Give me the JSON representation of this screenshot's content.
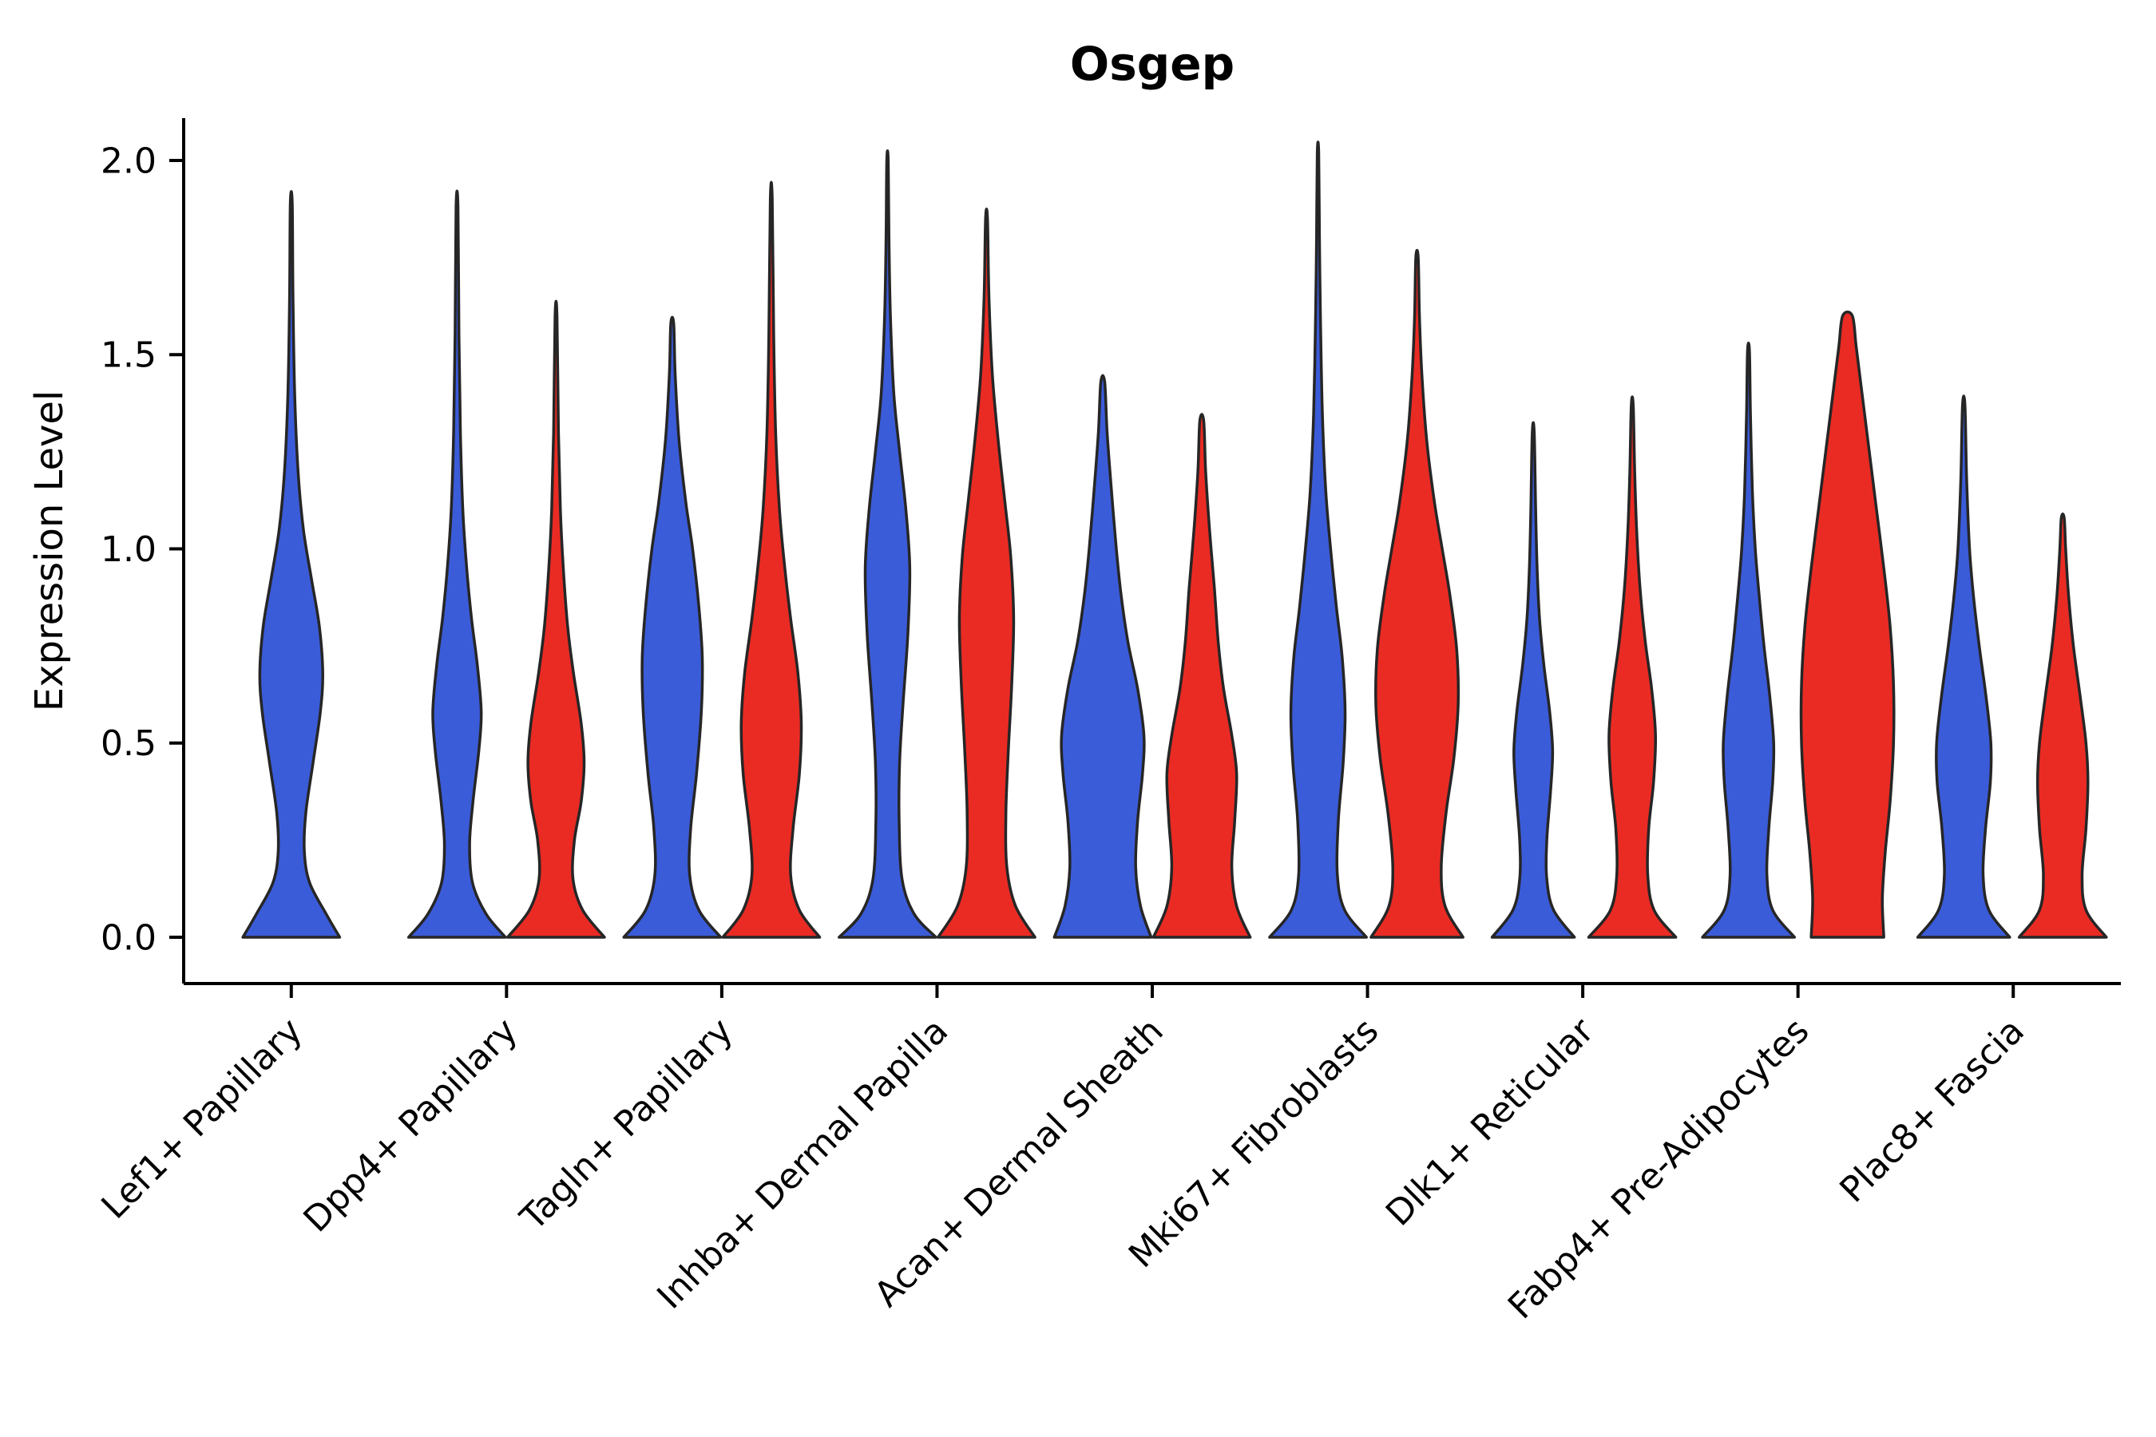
{
  "title": "Osgep",
  "chart_data": {
    "type": "violin",
    "title": "Osgep",
    "ylabel": "Expression Level",
    "xlabel": "",
    "ylim": [
      0,
      2.1
    ],
    "yticks": [
      {
        "value": 0.0,
        "label": "0.0"
      },
      {
        "value": 0.5,
        "label": "0.5"
      },
      {
        "value": 1.0,
        "label": "1.0"
      },
      {
        "value": 1.5,
        "label": "1.5"
      },
      {
        "value": 2.0,
        "label": "2.0"
      }
    ],
    "grid": false,
    "legend": "none",
    "groups": [
      "blue",
      "red"
    ],
    "colors": {
      "blue": "#3B5CD9",
      "red": "#EA2B24",
      "edge": "#262626",
      "text": "#000000",
      "axis": "#000000",
      "background": "#ffffff"
    },
    "categories": [
      "Lef1+ Papillary",
      "Dpp4+ Papillary",
      "Tagln+ Papillary",
      "Inhba+ Dermal Papilla",
      "Acan+ Dermal Sheath",
      "Mki67+ Fibroblasts",
      "Dlk1+ Reticular",
      "Fabp4+ Pre-Adipocytes",
      "Plac8+ Fascia"
    ],
    "violins": [
      {
        "category": "Lef1+ Papillary",
        "group": "blue",
        "solo": true,
        "max": 1.89,
        "profile": [
          [
            0,
            1.0
          ],
          [
            0.06,
            0.72
          ],
          [
            0.14,
            0.38
          ],
          [
            0.22,
            0.27
          ],
          [
            0.32,
            0.3
          ],
          [
            0.45,
            0.45
          ],
          [
            0.58,
            0.6
          ],
          [
            0.68,
            0.65
          ],
          [
            0.8,
            0.58
          ],
          [
            0.92,
            0.42
          ],
          [
            1.05,
            0.25
          ],
          [
            1.2,
            0.14
          ],
          [
            1.4,
            0.07
          ],
          [
            1.65,
            0.035
          ],
          [
            1.89,
            0.02
          ]
        ]
      },
      {
        "category": "Dpp4+ Papillary",
        "group": "blue",
        "solo": false,
        "max": 1.88,
        "profile": [
          [
            0,
            1.0
          ],
          [
            0.06,
            0.6
          ],
          [
            0.14,
            0.32
          ],
          [
            0.24,
            0.26
          ],
          [
            0.35,
            0.33
          ],
          [
            0.48,
            0.45
          ],
          [
            0.58,
            0.5
          ],
          [
            0.7,
            0.42
          ],
          [
            0.82,
            0.3
          ],
          [
            0.95,
            0.2
          ],
          [
            1.1,
            0.12
          ],
          [
            1.3,
            0.07
          ],
          [
            1.55,
            0.04
          ],
          [
            1.88,
            0.02
          ]
        ]
      },
      {
        "category": "Dpp4+ Papillary",
        "group": "red",
        "solo": false,
        "max": 1.6,
        "profile": [
          [
            0,
            1.0
          ],
          [
            0.07,
            0.55
          ],
          [
            0.15,
            0.35
          ],
          [
            0.25,
            0.38
          ],
          [
            0.35,
            0.52
          ],
          [
            0.45,
            0.58
          ],
          [
            0.55,
            0.52
          ],
          [
            0.68,
            0.36
          ],
          [
            0.8,
            0.24
          ],
          [
            0.95,
            0.15
          ],
          [
            1.1,
            0.09
          ],
          [
            1.3,
            0.05
          ],
          [
            1.6,
            0.02
          ]
        ]
      },
      {
        "category": "Tagln+ Papillary",
        "group": "blue",
        "solo": false,
        "max": 1.58,
        "profile": [
          [
            0,
            1.0
          ],
          [
            0.07,
            0.55
          ],
          [
            0.16,
            0.36
          ],
          [
            0.28,
            0.38
          ],
          [
            0.42,
            0.5
          ],
          [
            0.58,
            0.6
          ],
          [
            0.72,
            0.62
          ],
          [
            0.85,
            0.55
          ],
          [
            1.0,
            0.42
          ],
          [
            1.12,
            0.28
          ],
          [
            1.28,
            0.14
          ],
          [
            1.45,
            0.06
          ],
          [
            1.58,
            0.03
          ]
        ]
      },
      {
        "category": "Tagln+ Papillary",
        "group": "red",
        "solo": false,
        "max": 1.9,
        "profile": [
          [
            0,
            1.0
          ],
          [
            0.07,
            0.58
          ],
          [
            0.16,
            0.4
          ],
          [
            0.28,
            0.45
          ],
          [
            0.42,
            0.58
          ],
          [
            0.55,
            0.62
          ],
          [
            0.68,
            0.55
          ],
          [
            0.82,
            0.4
          ],
          [
            0.95,
            0.28
          ],
          [
            1.1,
            0.17
          ],
          [
            1.3,
            0.09
          ],
          [
            1.55,
            0.05
          ],
          [
            1.9,
            0.02
          ]
        ]
      },
      {
        "category": "Inhba+ Dermal Papilla",
        "group": "blue",
        "solo": false,
        "max": 2.0,
        "profile": [
          [
            0,
            1.0
          ],
          [
            0.06,
            0.55
          ],
          [
            0.15,
            0.3
          ],
          [
            0.3,
            0.24
          ],
          [
            0.45,
            0.25
          ],
          [
            0.6,
            0.32
          ],
          [
            0.78,
            0.42
          ],
          [
            0.95,
            0.46
          ],
          [
            1.1,
            0.38
          ],
          [
            1.25,
            0.25
          ],
          [
            1.4,
            0.13
          ],
          [
            1.6,
            0.06
          ],
          [
            1.8,
            0.03
          ],
          [
            2.0,
            0.015
          ]
        ]
      },
      {
        "category": "Inhba+ Dermal Papilla",
        "group": "red",
        "solo": false,
        "max": 1.85,
        "profile": [
          [
            0,
            1.0
          ],
          [
            0.08,
            0.6
          ],
          [
            0.18,
            0.42
          ],
          [
            0.32,
            0.4
          ],
          [
            0.48,
            0.45
          ],
          [
            0.65,
            0.52
          ],
          [
            0.82,
            0.56
          ],
          [
            0.98,
            0.5
          ],
          [
            1.12,
            0.38
          ],
          [
            1.28,
            0.24
          ],
          [
            1.45,
            0.12
          ],
          [
            1.65,
            0.05
          ],
          [
            1.85,
            0.02
          ]
        ]
      },
      {
        "category": "Acan+ Dermal Sheath",
        "group": "blue",
        "solo": false,
        "max": 1.43,
        "profile": [
          [
            0,
            1.0
          ],
          [
            0.08,
            0.78
          ],
          [
            0.18,
            0.68
          ],
          [
            0.3,
            0.72
          ],
          [
            0.42,
            0.82
          ],
          [
            0.52,
            0.85
          ],
          [
            0.64,
            0.72
          ],
          [
            0.76,
            0.52
          ],
          [
            0.88,
            0.38
          ],
          [
            1.0,
            0.28
          ],
          [
            1.15,
            0.18
          ],
          [
            1.3,
            0.09
          ],
          [
            1.43,
            0.04
          ]
        ]
      },
      {
        "category": "Acan+ Dermal Sheath",
        "group": "red",
        "solo": false,
        "max": 1.33,
        "profile": [
          [
            0,
            1.0
          ],
          [
            0.08,
            0.72
          ],
          [
            0.18,
            0.62
          ],
          [
            0.3,
            0.68
          ],
          [
            0.42,
            0.72
          ],
          [
            0.52,
            0.62
          ],
          [
            0.64,
            0.45
          ],
          [
            0.76,
            0.34
          ],
          [
            0.9,
            0.26
          ],
          [
            1.05,
            0.16
          ],
          [
            1.2,
            0.08
          ],
          [
            1.33,
            0.04
          ]
        ]
      },
      {
        "category": "Mki67+ Fibroblasts",
        "group": "blue",
        "solo": false,
        "max": 2.02,
        "profile": [
          [
            0,
            1.0
          ],
          [
            0.07,
            0.55
          ],
          [
            0.16,
            0.4
          ],
          [
            0.3,
            0.42
          ],
          [
            0.45,
            0.52
          ],
          [
            0.58,
            0.56
          ],
          [
            0.72,
            0.5
          ],
          [
            0.85,
            0.38
          ],
          [
            1.0,
            0.26
          ],
          [
            1.15,
            0.16
          ],
          [
            1.35,
            0.09
          ],
          [
            1.6,
            0.05
          ],
          [
            1.8,
            0.03
          ],
          [
            2.02,
            0.015
          ]
        ]
      },
      {
        "category": "Mki67+ Fibroblasts",
        "group": "red",
        "solo": false,
        "max": 1.75,
        "profile": [
          [
            0,
            0.95
          ],
          [
            0.08,
            0.58
          ],
          [
            0.18,
            0.5
          ],
          [
            0.32,
            0.6
          ],
          [
            0.46,
            0.76
          ],
          [
            0.6,
            0.85
          ],
          [
            0.74,
            0.82
          ],
          [
            0.88,
            0.68
          ],
          [
            1.0,
            0.52
          ],
          [
            1.12,
            0.36
          ],
          [
            1.28,
            0.2
          ],
          [
            1.45,
            0.1
          ],
          [
            1.6,
            0.05
          ],
          [
            1.75,
            0.025
          ]
        ]
      },
      {
        "category": "Dlk1+ Reticular",
        "group": "blue",
        "solo": false,
        "max": 1.3,
        "profile": [
          [
            0,
            0.85
          ],
          [
            0.07,
            0.42
          ],
          [
            0.15,
            0.28
          ],
          [
            0.25,
            0.28
          ],
          [
            0.38,
            0.36
          ],
          [
            0.48,
            0.4
          ],
          [
            0.58,
            0.34
          ],
          [
            0.7,
            0.22
          ],
          [
            0.82,
            0.13
          ],
          [
            0.95,
            0.08
          ],
          [
            1.1,
            0.05
          ],
          [
            1.3,
            0.02
          ]
        ]
      },
      {
        "category": "Dlk1+ Reticular",
        "group": "red",
        "solo": false,
        "max": 1.37,
        "profile": [
          [
            0,
            0.9
          ],
          [
            0.07,
            0.45
          ],
          [
            0.16,
            0.32
          ],
          [
            0.28,
            0.34
          ],
          [
            0.4,
            0.44
          ],
          [
            0.52,
            0.48
          ],
          [
            0.64,
            0.4
          ],
          [
            0.76,
            0.27
          ],
          [
            0.9,
            0.16
          ],
          [
            1.05,
            0.09
          ],
          [
            1.2,
            0.05
          ],
          [
            1.37,
            0.02
          ]
        ]
      },
      {
        "category": "Fabp4+ Pre-Adipocytes",
        "group": "blue",
        "solo": false,
        "max": 1.51,
        "profile": [
          [
            0,
            0.95
          ],
          [
            0.07,
            0.5
          ],
          [
            0.16,
            0.38
          ],
          [
            0.28,
            0.42
          ],
          [
            0.4,
            0.5
          ],
          [
            0.5,
            0.52
          ],
          [
            0.62,
            0.44
          ],
          [
            0.75,
            0.32
          ],
          [
            0.88,
            0.22
          ],
          [
            1.0,
            0.14
          ],
          [
            1.15,
            0.08
          ],
          [
            1.35,
            0.04
          ],
          [
            1.51,
            0.02
          ]
        ]
      },
      {
        "category": "Fabp4+ Pre-Adipocytes",
        "group": "red",
        "solo": false,
        "max": 1.6,
        "profile": [
          [
            0,
            0.75
          ],
          [
            0.1,
            0.72
          ],
          [
            0.22,
            0.78
          ],
          [
            0.35,
            0.88
          ],
          [
            0.5,
            0.95
          ],
          [
            0.65,
            0.95
          ],
          [
            0.8,
            0.88
          ],
          [
            0.95,
            0.75
          ],
          [
            1.1,
            0.6
          ],
          [
            1.25,
            0.45
          ],
          [
            1.4,
            0.3
          ],
          [
            1.52,
            0.18
          ],
          [
            1.6,
            0.1
          ]
        ]
      },
      {
        "category": "Plac8+ Fascia",
        "group": "blue",
        "solo": false,
        "max": 1.37,
        "profile": [
          [
            0,
            0.95
          ],
          [
            0.07,
            0.52
          ],
          [
            0.16,
            0.4
          ],
          [
            0.28,
            0.45
          ],
          [
            0.4,
            0.55
          ],
          [
            0.5,
            0.56
          ],
          [
            0.62,
            0.46
          ],
          [
            0.75,
            0.32
          ],
          [
            0.88,
            0.2
          ],
          [
            1.0,
            0.12
          ],
          [
            1.18,
            0.06
          ],
          [
            1.37,
            0.025
          ]
        ]
      },
      {
        "category": "Plac8+ Fascia",
        "group": "red",
        "solo": false,
        "max": 1.08,
        "profile": [
          [
            0,
            0.9
          ],
          [
            0.07,
            0.48
          ],
          [
            0.16,
            0.4
          ],
          [
            0.28,
            0.48
          ],
          [
            0.4,
            0.52
          ],
          [
            0.5,
            0.48
          ],
          [
            0.62,
            0.36
          ],
          [
            0.75,
            0.22
          ],
          [
            0.88,
            0.12
          ],
          [
            1.0,
            0.06
          ],
          [
            1.08,
            0.03
          ]
        ]
      }
    ]
  }
}
